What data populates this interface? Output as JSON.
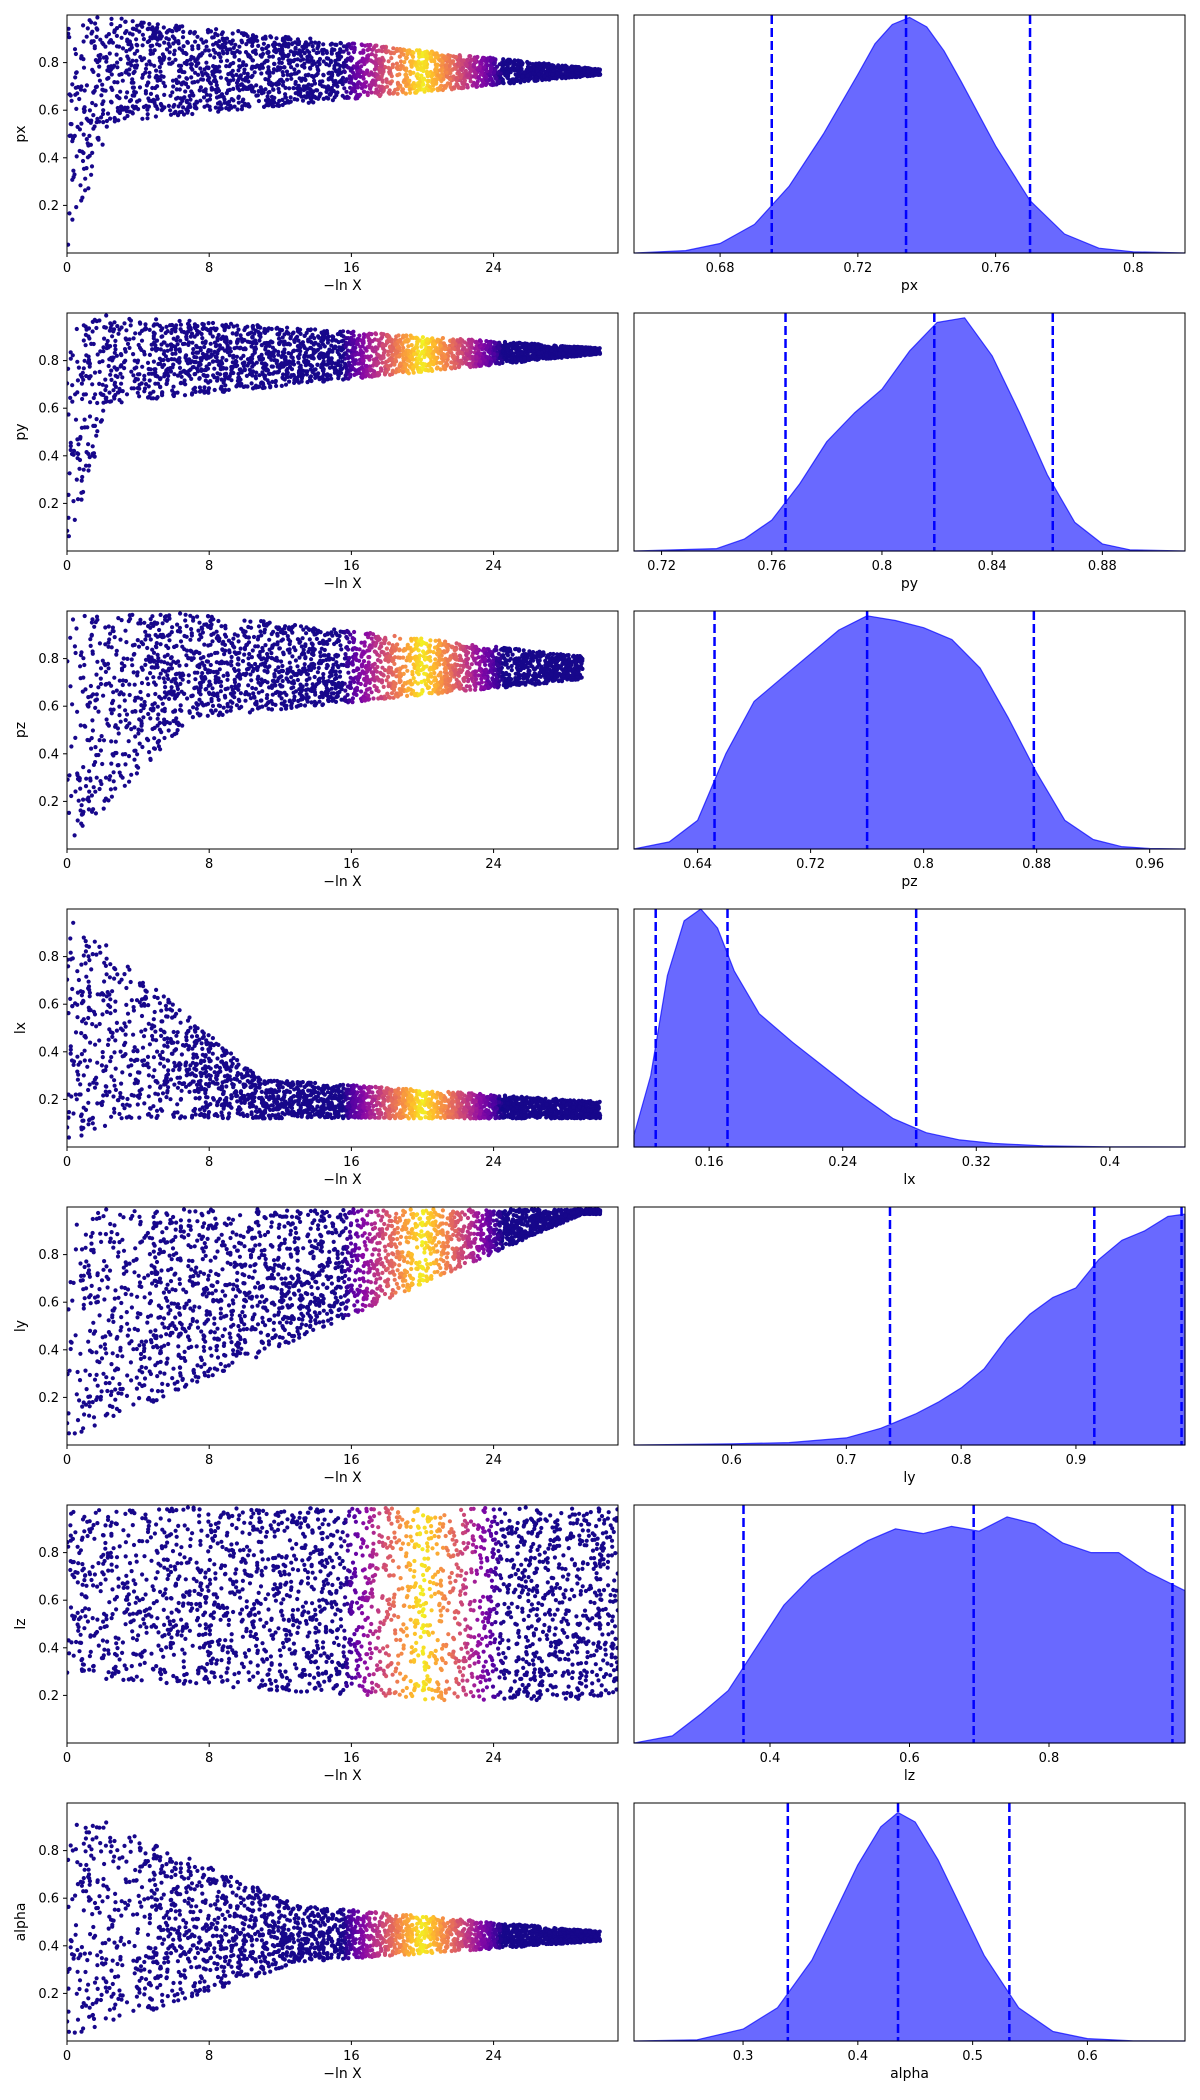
{
  "chart_data": [
    {
      "type": "scatter",
      "ylabel": "px",
      "xlabel": "−ln X",
      "xlim": [
        0,
        31
      ],
      "ylim": [
        0,
        1
      ],
      "x_ticks": [
        0,
        8,
        16,
        24
      ],
      "y_ticks": [
        0.2,
        0.4,
        0.6,
        0.8
      ],
      "colormap": "plasma",
      "shape": {
        "rise_end": 2.5,
        "y_low": 0.55,
        "y_conv": 0.76,
        "final_spread": 0.012,
        "tail_end": 30,
        "peak": 20
      },
      "points_desc": "density of dark-blue samples widening across x; colored band peaks near x=20"
    },
    {
      "type": "area",
      "xlabel": "px",
      "xlim": [
        0.655,
        0.815
      ],
      "x_ticks": [
        0.68,
        0.72,
        0.76,
        0.8
      ],
      "quantile_lines": [
        0.695,
        0.734,
        0.77
      ],
      "density_x": [
        0.655,
        0.67,
        0.68,
        0.69,
        0.7,
        0.71,
        0.72,
        0.725,
        0.73,
        0.735,
        0.74,
        0.745,
        0.75,
        0.76,
        0.77,
        0.78,
        0.79,
        0.8,
        0.815
      ],
      "density_y": [
        0.0,
        0.01,
        0.04,
        0.12,
        0.28,
        0.5,
        0.75,
        0.88,
        0.96,
        0.99,
        0.95,
        0.85,
        0.72,
        0.45,
        0.22,
        0.08,
        0.02,
        0.005,
        0.0
      ],
      "fill_color": "#6666ff",
      "line_color": "#0000ff"
    },
    {
      "type": "scatter",
      "ylabel": "py",
      "xlabel": "−ln X",
      "xlim": [
        0,
        31
      ],
      "ylim": [
        0,
        1
      ],
      "x_ticks": [
        0,
        8,
        16,
        24
      ],
      "y_ticks": [
        0.2,
        0.4,
        0.6,
        0.8
      ],
      "colormap": "plasma",
      "shape": {
        "rise_end": 2.5,
        "y_low": 0.62,
        "y_conv": 0.84,
        "final_spread": 0.012,
        "tail_end": 30,
        "peak": 20
      }
    },
    {
      "type": "area",
      "xlabel": "py",
      "xlim": [
        0.71,
        0.91
      ],
      "x_ticks": [
        0.72,
        0.76,
        0.8,
        0.84,
        0.88
      ],
      "quantile_lines": [
        0.765,
        0.819,
        0.862
      ],
      "density_x": [
        0.71,
        0.74,
        0.75,
        0.76,
        0.77,
        0.78,
        0.79,
        0.8,
        0.81,
        0.82,
        0.83,
        0.84,
        0.85,
        0.86,
        0.87,
        0.88,
        0.89,
        0.91
      ],
      "density_y": [
        0.0,
        0.01,
        0.05,
        0.13,
        0.28,
        0.46,
        0.58,
        0.68,
        0.84,
        0.96,
        0.98,
        0.82,
        0.58,
        0.32,
        0.12,
        0.03,
        0.005,
        0.0
      ],
      "fill_color": "#6666ff",
      "line_color": "#0000ff"
    },
    {
      "type": "scatter",
      "ylabel": "pz",
      "xlabel": "−ln X",
      "xlim": [
        0,
        31
      ],
      "ylim": [
        0,
        1
      ],
      "x_ticks": [
        0,
        8,
        16,
        24
      ],
      "y_ticks": [
        0.2,
        0.4,
        0.6,
        0.8
      ],
      "colormap": "plasma",
      "shape": {
        "rise_end": 7.0,
        "y_low": 0.55,
        "y_conv": 0.76,
        "final_spread": 0.05,
        "tail_end": 29,
        "peak": 20
      }
    },
    {
      "type": "area",
      "xlabel": "pz",
      "xlim": [
        0.595,
        0.985
      ],
      "x_ticks": [
        0.64,
        0.72,
        0.8,
        0.88,
        0.96
      ],
      "quantile_lines": [
        0.652,
        0.76,
        0.878
      ],
      "density_x": [
        0.595,
        0.62,
        0.64,
        0.66,
        0.68,
        0.7,
        0.72,
        0.74,
        0.76,
        0.78,
        0.8,
        0.82,
        0.84,
        0.86,
        0.88,
        0.9,
        0.92,
        0.94,
        0.96,
        0.985
      ],
      "density_y": [
        0.0,
        0.03,
        0.12,
        0.4,
        0.62,
        0.72,
        0.82,
        0.92,
        0.98,
        0.96,
        0.93,
        0.88,
        0.76,
        0.55,
        0.32,
        0.12,
        0.04,
        0.01,
        0.002,
        0.0
      ],
      "fill_color": "#6666ff",
      "line_color": "#0000ff"
    },
    {
      "type": "scatter",
      "ylabel": "lx",
      "xlabel": "−ln X",
      "xlim": [
        0,
        31
      ],
      "ylim": [
        0,
        1
      ],
      "x_ticks": [
        0,
        8,
        16,
        24
      ],
      "y_ticks": [
        0.2,
        0.4,
        0.6,
        0.8
      ],
      "colormap": "plasma",
      "shape": {
        "rise_end": 11.0,
        "y_low": 0.12,
        "y_conv": 0.16,
        "final_spread": 0.03,
        "tail_end": 30,
        "peak": 20,
        "inverted": true
      }
    },
    {
      "type": "area",
      "xlabel": "lx",
      "xlim": [
        0.115,
        0.445
      ],
      "x_ticks": [
        0.16,
        0.24,
        0.32,
        0.4
      ],
      "quantile_lines": [
        0.128,
        0.171,
        0.284
      ],
      "density_x": [
        0.115,
        0.125,
        0.135,
        0.145,
        0.155,
        0.165,
        0.175,
        0.19,
        0.21,
        0.23,
        0.25,
        0.27,
        0.29,
        0.31,
        0.33,
        0.36,
        0.4,
        0.445
      ],
      "density_y": [
        0.05,
        0.3,
        0.72,
        0.95,
        1.0,
        0.92,
        0.74,
        0.56,
        0.44,
        0.33,
        0.22,
        0.12,
        0.06,
        0.03,
        0.015,
        0.005,
        0.001,
        0.0
      ],
      "fill_color": "#6666ff",
      "line_color": "#0000ff"
    },
    {
      "type": "scatter",
      "ylabel": "ly",
      "xlabel": "−ln X",
      "xlim": [
        0,
        31
      ],
      "ylim": [
        0,
        1
      ],
      "x_ticks": [
        0,
        8,
        16,
        24
      ],
      "y_ticks": [
        0.2,
        0.4,
        0.6,
        0.8
      ],
      "colormap": "plasma",
      "shape": {
        "rise_end": 29.0,
        "y_low": 0.98,
        "y_conv": 0.98,
        "final_spread": 0.02,
        "tail_end": 30,
        "peak": 20,
        "ramp": true
      }
    },
    {
      "type": "area",
      "xlabel": "ly",
      "xlim": [
        0.515,
        0.995
      ],
      "x_ticks": [
        0.6,
        0.7,
        0.8,
        0.9
      ],
      "quantile_lines": [
        0.738,
        0.916,
        0.992
      ],
      "density_x": [
        0.515,
        0.6,
        0.65,
        0.7,
        0.73,
        0.76,
        0.78,
        0.8,
        0.82,
        0.84,
        0.86,
        0.88,
        0.9,
        0.92,
        0.94,
        0.96,
        0.98,
        0.995
      ],
      "density_y": [
        0.0,
        0.005,
        0.01,
        0.03,
        0.07,
        0.13,
        0.18,
        0.24,
        0.32,
        0.45,
        0.55,
        0.62,
        0.66,
        0.78,
        0.86,
        0.9,
        0.96,
        0.97
      ],
      "fill_color": "#6666ff",
      "line_color": "#0000ff"
    },
    {
      "type": "scatter",
      "ylabel": "lz",
      "xlabel": "−ln X",
      "xlim": [
        0,
        31
      ],
      "ylim": [
        0,
        1
      ],
      "x_ticks": [
        0,
        8,
        16,
        24
      ],
      "y_ticks": [
        0.2,
        0.4,
        0.6,
        0.8
      ],
      "colormap": "plasma",
      "shape": {
        "rise_end": 1.5,
        "y_low": 0.2,
        "y_conv": 0.6,
        "final_spread": 0.3,
        "tail_end": 31,
        "peak": 20,
        "band": true
      }
    },
    {
      "type": "area",
      "xlabel": "lz",
      "xlim": [
        0.205,
        0.995
      ],
      "x_ticks": [
        0.4,
        0.6,
        0.8
      ],
      "quantile_lines": [
        0.362,
        0.692,
        0.977
      ],
      "density_x": [
        0.205,
        0.26,
        0.3,
        0.34,
        0.38,
        0.42,
        0.46,
        0.5,
        0.54,
        0.58,
        0.62,
        0.66,
        0.7,
        0.74,
        0.78,
        0.82,
        0.86,
        0.9,
        0.94,
        0.995
      ],
      "density_y": [
        0.0,
        0.03,
        0.12,
        0.22,
        0.4,
        0.58,
        0.7,
        0.78,
        0.85,
        0.9,
        0.88,
        0.91,
        0.89,
        0.95,
        0.92,
        0.84,
        0.8,
        0.8,
        0.72,
        0.64
      ],
      "fill_color": "#6666ff",
      "line_color": "#0000ff"
    },
    {
      "type": "scatter",
      "ylabel": "alpha",
      "xlabel": "−ln X",
      "xlim": [
        0,
        31
      ],
      "ylim": [
        0,
        1
      ],
      "x_ticks": [
        0,
        8,
        16,
        24
      ],
      "y_ticks": [
        0.2,
        0.4,
        0.6,
        0.8
      ],
      "colormap": "plasma",
      "shape": {
        "rise_end": 13.0,
        "y_low": 0.43,
        "y_conv": 0.44,
        "final_spread": 0.015,
        "tail_end": 30,
        "peak": 20,
        "funnel": true
      }
    },
    {
      "type": "area",
      "xlabel": "alpha",
      "xlim": [
        0.205,
        0.685
      ],
      "x_ticks": [
        0.3,
        0.4,
        0.5,
        0.6
      ],
      "quantile_lines": [
        0.339,
        0.435,
        0.532
      ],
      "density_x": [
        0.205,
        0.26,
        0.3,
        0.33,
        0.36,
        0.38,
        0.4,
        0.42,
        0.435,
        0.45,
        0.47,
        0.49,
        0.51,
        0.54,
        0.57,
        0.6,
        0.64,
        0.685
      ],
      "density_y": [
        0.0,
        0.005,
        0.05,
        0.14,
        0.34,
        0.54,
        0.74,
        0.9,
        0.96,
        0.92,
        0.76,
        0.56,
        0.36,
        0.14,
        0.04,
        0.01,
        0.001,
        0.0
      ],
      "fill_color": "#6666ff",
      "line_color": "#0000ff"
    }
  ]
}
